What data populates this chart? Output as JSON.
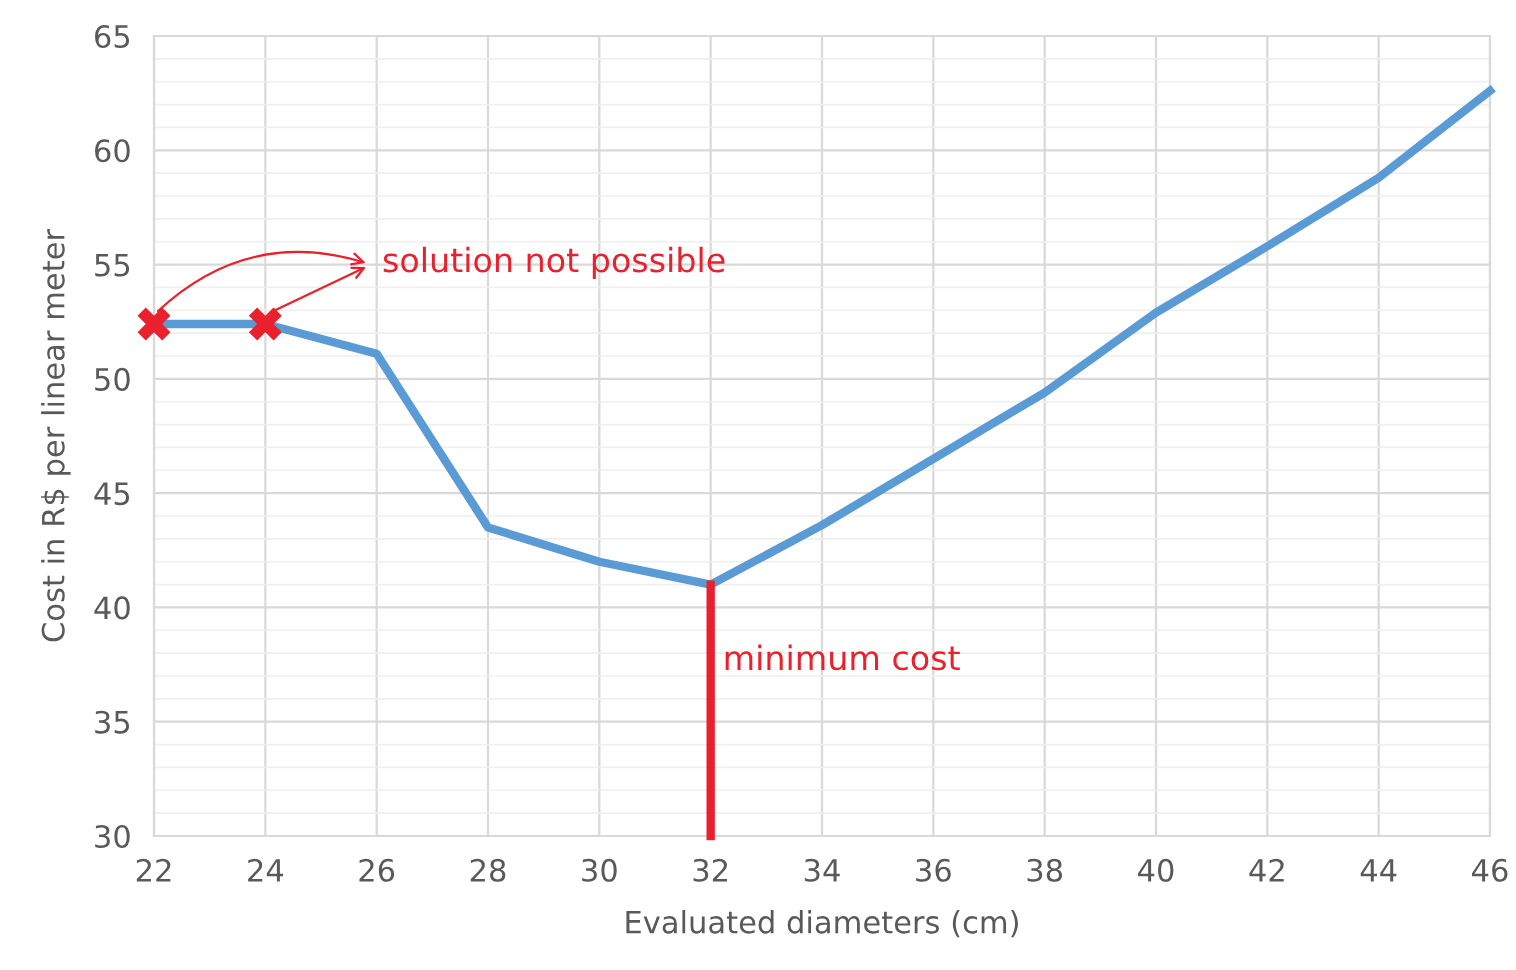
{
  "chart_data": {
    "type": "line",
    "xlabel": "Evaluated diameters (cm)",
    "ylabel": "Cost in R$ per linear meter",
    "series": [
      {
        "color": "#5b9bd5",
        "x": [
          22,
          24,
          26,
          28,
          30,
          32,
          34,
          36,
          38,
          40,
          42,
          44,
          46
        ],
        "values": [
          52.4,
          52.4,
          51.1,
          43.5,
          42.0,
          41.0,
          43.6,
          46.5,
          49.4,
          52.9,
          55.8,
          58.8,
          62.6
        ]
      },
      {
        "type": "scatter",
        "color": "#e8212c",
        "marker": "cross",
        "x": [
          22,
          24
        ],
        "values": [
          52.4,
          52.4
        ]
      },
      {
        "type": "line",
        "color": "#e8212c",
        "x": [
          32,
          32
        ],
        "values": [
          30,
          41.0
        ]
      }
    ],
    "annotations": [
      {
        "text": "solution not possible",
        "x": 24,
        "y": 52.4
      },
      "minimum cost"
    ],
    "xlim": [
      22,
      46
    ],
    "xticks": [
      22,
      24,
      26,
      28,
      30,
      32,
      34,
      36,
      38,
      40,
      42,
      44,
      46
    ],
    "ylim": [
      30,
      65
    ],
    "yticks": [
      30,
      35,
      40,
      45,
      50,
      55,
      60,
      65
    ],
    "grid": true,
    "marker": "none",
    "line_style": "solid"
  }
}
